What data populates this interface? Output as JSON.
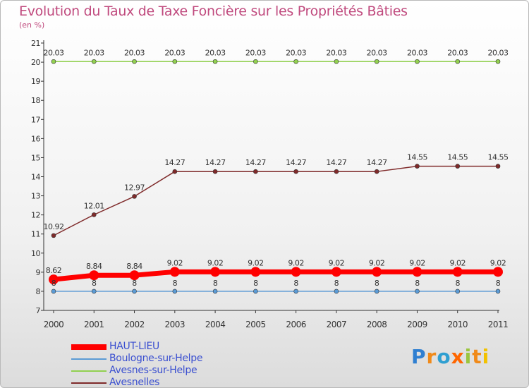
{
  "title": "Evolution du Taux de Taxe Foncière sur les Propriétés Bâties",
  "subtitle": "(en %)",
  "logo": {
    "text": "Proxiti",
    "letters": [
      {
        "ch": "P",
        "color": "#2f7fd1"
      },
      {
        "ch": "r",
        "color": "#f08a1a"
      },
      {
        "ch": "o",
        "color": "#2f9fd1"
      },
      {
        "ch": "x",
        "color": "#ff6600"
      },
      {
        "ch": "i",
        "color": "#9bc53d"
      },
      {
        "ch": "t",
        "color": "#f08a1a"
      },
      {
        "ch": "i",
        "color": "#f2c200"
      }
    ]
  },
  "chart_data": {
    "type": "line",
    "title": "Evolution du Taux de Taxe Foncière sur les Propriétés Bâties",
    "ylabel": "(en %)",
    "xlabel": "",
    "x": [
      "2000",
      "2001",
      "2002",
      "2003",
      "2004",
      "2005",
      "2006",
      "2007",
      "2008",
      "2009",
      "2010",
      "2011"
    ],
    "ylim": [
      7,
      21
    ],
    "yticks": [
      7,
      8,
      9,
      10,
      11,
      12,
      13,
      14,
      15,
      16,
      17,
      18,
      19,
      20,
      21
    ],
    "grid": false,
    "legend_position": "bottom-left",
    "series": [
      {
        "name": "HAUT-LIEU",
        "color": "#ff0000",
        "bold": true,
        "values": [
          8.62,
          8.84,
          8.84,
          9.02,
          9.02,
          9.02,
          9.02,
          9.02,
          9.02,
          9.02,
          9.02,
          9.02
        ],
        "labels": [
          "8.62",
          "8.84",
          "8.84",
          "9.02",
          "9.02",
          "9.02",
          "9.02",
          "9.02",
          "9.02",
          "9.02",
          "9.02",
          "9.02"
        ]
      },
      {
        "name": "Boulogne-sur-Helpe",
        "color": "#5b9bd5",
        "bold": false,
        "values": [
          8,
          8,
          8,
          8,
          8,
          8,
          8,
          8,
          8,
          8,
          8,
          8
        ],
        "labels": [
          "8",
          "8",
          "8",
          "8",
          "8",
          "8",
          "8",
          "8",
          "8",
          "8",
          "8",
          "8"
        ]
      },
      {
        "name": "Avesnes-sur-Helpe",
        "color": "#92d050",
        "bold": false,
        "values": [
          20.03,
          20.03,
          20.03,
          20.03,
          20.03,
          20.03,
          20.03,
          20.03,
          20.03,
          20.03,
          20.03,
          20.03
        ],
        "labels": [
          "20.03",
          "20.03",
          "20.03",
          "20.03",
          "20.03",
          "20.03",
          "20.03",
          "20.03",
          "20.03",
          "20.03",
          "20.03",
          "20.03"
        ]
      },
      {
        "name": "Avesnelles",
        "color": "#7f2a2a",
        "bold": false,
        "values": [
          10.92,
          12.01,
          12.97,
          14.27,
          14.27,
          14.27,
          14.27,
          14.27,
          14.27,
          14.55,
          14.55,
          14.55
        ],
        "labels": [
          "10.92",
          "12.01",
          "12.97",
          "14.27",
          "14.27",
          "14.27",
          "14.27",
          "14.27",
          "14.27",
          "14.55",
          "14.55",
          "14.55"
        ]
      }
    ]
  }
}
